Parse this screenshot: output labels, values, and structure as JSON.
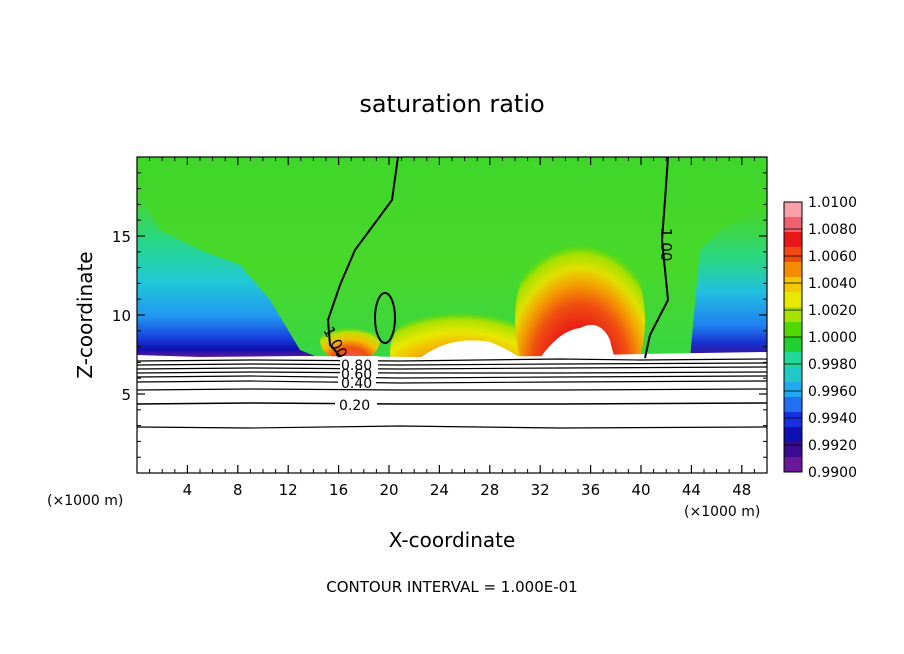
{
  "chart_data": {
    "type": "heatmap",
    "title": "saturation ratio",
    "xlabel": "X-coordinate",
    "ylabel": "Z-coordinate",
    "x_units_left": "(×1000 m)",
    "x_units_right": "(×1000 m)",
    "footer": "CONTOUR INTERVAL = 1.000E-01",
    "xlim": [
      0,
      50
    ],
    "ylim": [
      0,
      20
    ],
    "x_ticks": [
      4,
      8,
      12,
      16,
      20,
      24,
      28,
      32,
      36,
      40,
      44,
      48
    ],
    "y_ticks": [
      5,
      10,
      15
    ],
    "x_tick_labels": [
      "4",
      "8",
      "12",
      "16",
      "20",
      "24",
      "28",
      "32",
      "36",
      "40",
      "44",
      "48"
    ],
    "y_tick_labels": [
      "5",
      "10",
      "15"
    ],
    "colorbar": {
      "labels": [
        "1.0100",
        "1.0080",
        "1.0060",
        "1.0040",
        "1.0020",
        "1.0000",
        "0.9980",
        "0.9960",
        "0.9940",
        "0.9920",
        "0.9900"
      ],
      "colors": [
        "#f9a0a8",
        "#f06070",
        "#e81818",
        "#f04a10",
        "#f48c00",
        "#f4c800",
        "#e8e800",
        "#a8e000",
        "#50d800",
        "#20d030",
        "#20d898",
        "#20c8c8",
        "#20a8f0",
        "#2070f0",
        "#1830e0",
        "#1010b0",
        "#3a0a90",
        "#6a1a98"
      ]
    },
    "contour_labels": [
      "1.00",
      "1.00",
      "0.80",
      "0.60",
      "0.40",
      "0.20"
    ],
    "notes": ""
  }
}
